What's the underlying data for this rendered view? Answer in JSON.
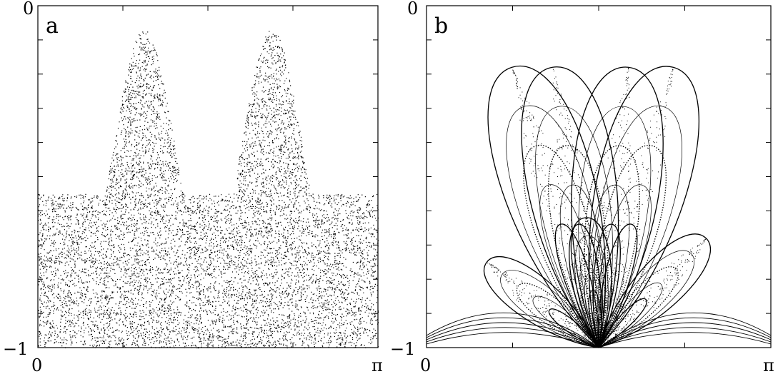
{
  "chart_data": [
    {
      "type": "scatter",
      "panel_label": "a",
      "x_ticks": [
        "0",
        "π"
      ],
      "y_ticks": [
        "0",
        "−1"
      ],
      "xlim": [
        0,
        3.14159
      ],
      "ylim": [
        -1,
        0
      ],
      "grid": false,
      "description_points": "dense chaotic scatter forming two lobes",
      "lobes": [
        {
          "center_x": 0.98,
          "top_y": -0.07
        },
        {
          "center_x": 2.16,
          "top_y": -0.07
        }
      ]
    },
    {
      "type": "scatter",
      "panel_label": "b",
      "x_ticks": [
        "0",
        "π"
      ],
      "y_ticks": [
        "0",
        "−1"
      ],
      "xlim": [
        0,
        3.14159
      ],
      "ylim": [
        -1,
        0
      ],
      "grid": false,
      "petals": [
        {
          "tip_x": 1.15,
          "tip_y": -0.18
        },
        {
          "tip_x": 0.78,
          "tip_y": -0.18
        },
        {
          "tip_x": 1.84,
          "tip_y": -0.18
        },
        {
          "tip_x": 2.25,
          "tip_y": -0.18
        },
        {
          "tip_x": 0.55,
          "tip_y": -0.75
        },
        {
          "tip_x": 2.55,
          "tip_y": -0.68
        },
        {
          "tip_x": 1.45,
          "tip_y": -0.62
        }
      ],
      "convergence_point": {
        "x": 1.5708,
        "y": -1
      }
    }
  ]
}
